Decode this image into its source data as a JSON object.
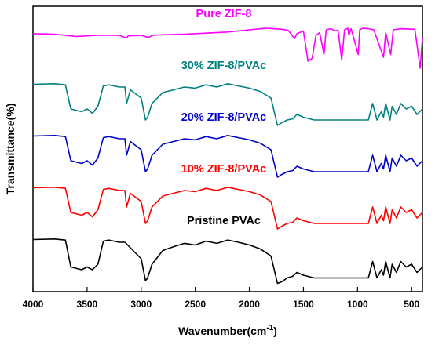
{
  "chart_data": {
    "type": "line",
    "title": "",
    "xlabel": "Wavenumber(cm",
    "xlabel_superscript": "-1",
    "xlabel_suffix": ")",
    "ylabel": "Transmittance(%)",
    "xlim": [
      4000,
      400
    ],
    "x_reversed": true,
    "x_ticks": [
      4000,
      3500,
      3000,
      2500,
      2000,
      1500,
      1000,
      500
    ],
    "y_ticks_shown": false,
    "grid": false,
    "series": [
      {
        "name": "Pure ZIF-8",
        "color": "#ff00ff",
        "offset": 4,
        "points": [
          [
            4000,
            0.83
          ],
          [
            3800,
            0.82
          ],
          [
            3600,
            0.78
          ],
          [
            3400,
            0.8
          ],
          [
            3200,
            0.8
          ],
          [
            3135,
            0.75
          ],
          [
            3120,
            0.79
          ],
          [
            3000,
            0.8
          ],
          [
            2930,
            0.76
          ],
          [
            2900,
            0.8
          ],
          [
            2800,
            0.81
          ],
          [
            2600,
            0.82
          ],
          [
            2400,
            0.84
          ],
          [
            2200,
            0.86
          ],
          [
            2000,
            0.9
          ],
          [
            1850,
            0.93
          ],
          [
            1700,
            0.91
          ],
          [
            1640,
            0.89
          ],
          [
            1584,
            0.74
          ],
          [
            1560,
            0.83
          ],
          [
            1500,
            0.88
          ],
          [
            1458,
            0.33
          ],
          [
            1420,
            0.38
          ],
          [
            1384,
            0.8
          ],
          [
            1350,
            0.85
          ],
          [
            1310,
            0.45
          ],
          [
            1290,
            0.9
          ],
          [
            1250,
            0.92
          ],
          [
            1200,
            0.88
          ],
          [
            1180,
            0.9
          ],
          [
            1146,
            0.35
          ],
          [
            1120,
            0.9
          ],
          [
            1090,
            0.93
          ],
          [
            1080,
            0.8
          ],
          [
            1060,
            0.92
          ],
          [
            994,
            0.45
          ],
          [
            980,
            0.9
          ],
          [
            950,
            0.93
          ],
          [
            900,
            0.92
          ],
          [
            850,
            0.9
          ],
          [
            760,
            0.4
          ],
          [
            740,
            0.85
          ],
          [
            693,
            0.45
          ],
          [
            670,
            0.9
          ],
          [
            600,
            0.92
          ],
          [
            470,
            0.91
          ],
          [
            421,
            0.2
          ],
          [
            400,
            0.75
          ]
        ]
      },
      {
        "name": "30% ZIF-8/PVAc",
        "color": "#008080",
        "offset": 3,
        "points": [
          [
            4000,
            0.85
          ],
          [
            3800,
            0.86
          ],
          [
            3700,
            0.84
          ],
          [
            3650,
            0.4
          ],
          [
            3550,
            0.35
          ],
          [
            3500,
            0.4
          ],
          [
            3450,
            0.32
          ],
          [
            3400,
            0.45
          ],
          [
            3350,
            0.82
          ],
          [
            3300,
            0.84
          ],
          [
            3200,
            0.8
          ],
          [
            3150,
            0.8
          ],
          [
            3135,
            0.5
          ],
          [
            3120,
            0.6
          ],
          [
            3100,
            0.75
          ],
          [
            3000,
            0.6
          ],
          [
            2960,
            0.2
          ],
          [
            2940,
            0.25
          ],
          [
            2900,
            0.5
          ],
          [
            2800,
            0.7
          ],
          [
            2700,
            0.75
          ],
          [
            2600,
            0.8
          ],
          [
            2500,
            0.78
          ],
          [
            2400,
            0.84
          ],
          [
            2300,
            0.8
          ],
          [
            2200,
            0.86
          ],
          [
            2100,
            0.82
          ],
          [
            2000,
            0.78
          ],
          [
            1900,
            0.72
          ],
          [
            1800,
            0.6
          ],
          [
            1740,
            0.1
          ],
          [
            1700,
            0.15
          ],
          [
            1650,
            0.2
          ],
          [
            1600,
            0.22
          ],
          [
            1560,
            0.3
          ],
          [
            1500,
            0.25
          ],
          [
            1400,
            0.2
          ],
          [
            1300,
            0.2
          ],
          [
            1200,
            0.2
          ],
          [
            1100,
            0.2
          ],
          [
            1000,
            0.2
          ],
          [
            900,
            0.2
          ],
          [
            860,
            0.5
          ],
          [
            820,
            0.2
          ],
          [
            780,
            0.35
          ],
          [
            760,
            0.25
          ],
          [
            740,
            0.5
          ],
          [
            700,
            0.2
          ],
          [
            680,
            0.45
          ],
          [
            640,
            0.3
          ],
          [
            600,
            0.5
          ],
          [
            550,
            0.4
          ],
          [
            500,
            0.45
          ],
          [
            450,
            0.3
          ],
          [
            400,
            0.4
          ]
        ]
      },
      {
        "name": "20% ZIF-8/PVAc",
        "color": "#0000cc",
        "offset": 2,
        "points": [
          [
            4000,
            0.85
          ],
          [
            3800,
            0.86
          ],
          [
            3700,
            0.84
          ],
          [
            3650,
            0.4
          ],
          [
            3550,
            0.35
          ],
          [
            3500,
            0.4
          ],
          [
            3450,
            0.32
          ],
          [
            3400,
            0.45
          ],
          [
            3350,
            0.82
          ],
          [
            3300,
            0.84
          ],
          [
            3200,
            0.8
          ],
          [
            3150,
            0.8
          ],
          [
            3135,
            0.5
          ],
          [
            3120,
            0.6
          ],
          [
            3100,
            0.75
          ],
          [
            3000,
            0.6
          ],
          [
            2960,
            0.2
          ],
          [
            2940,
            0.25
          ],
          [
            2900,
            0.5
          ],
          [
            2800,
            0.7
          ],
          [
            2700,
            0.75
          ],
          [
            2600,
            0.8
          ],
          [
            2500,
            0.78
          ],
          [
            2400,
            0.84
          ],
          [
            2300,
            0.8
          ],
          [
            2200,
            0.86
          ],
          [
            2100,
            0.82
          ],
          [
            2000,
            0.78
          ],
          [
            1900,
            0.72
          ],
          [
            1800,
            0.6
          ],
          [
            1740,
            0.1
          ],
          [
            1700,
            0.15
          ],
          [
            1650,
            0.2
          ],
          [
            1600,
            0.22
          ],
          [
            1560,
            0.3
          ],
          [
            1500,
            0.25
          ],
          [
            1400,
            0.2
          ],
          [
            1300,
            0.2
          ],
          [
            1200,
            0.2
          ],
          [
            1100,
            0.2
          ],
          [
            1000,
            0.2
          ],
          [
            900,
            0.2
          ],
          [
            860,
            0.5
          ],
          [
            820,
            0.2
          ],
          [
            780,
            0.35
          ],
          [
            760,
            0.25
          ],
          [
            740,
            0.5
          ],
          [
            700,
            0.2
          ],
          [
            680,
            0.45
          ],
          [
            640,
            0.3
          ],
          [
            600,
            0.5
          ],
          [
            550,
            0.4
          ],
          [
            500,
            0.45
          ],
          [
            450,
            0.3
          ],
          [
            400,
            0.4
          ]
        ]
      },
      {
        "name": "10% ZIF-8/PVAc",
        "color": "#ff0000",
        "offset": 1,
        "points": [
          [
            4000,
            0.85
          ],
          [
            3800,
            0.86
          ],
          [
            3700,
            0.84
          ],
          [
            3650,
            0.4
          ],
          [
            3550,
            0.35
          ],
          [
            3500,
            0.4
          ],
          [
            3450,
            0.32
          ],
          [
            3400,
            0.45
          ],
          [
            3350,
            0.82
          ],
          [
            3300,
            0.84
          ],
          [
            3200,
            0.8
          ],
          [
            3150,
            0.8
          ],
          [
            3135,
            0.5
          ],
          [
            3120,
            0.6
          ],
          [
            3100,
            0.75
          ],
          [
            3000,
            0.6
          ],
          [
            2960,
            0.2
          ],
          [
            2940,
            0.25
          ],
          [
            2900,
            0.5
          ],
          [
            2800,
            0.7
          ],
          [
            2700,
            0.75
          ],
          [
            2600,
            0.8
          ],
          [
            2500,
            0.78
          ],
          [
            2400,
            0.84
          ],
          [
            2300,
            0.8
          ],
          [
            2200,
            0.86
          ],
          [
            2100,
            0.82
          ],
          [
            2000,
            0.78
          ],
          [
            1900,
            0.72
          ],
          [
            1800,
            0.6
          ],
          [
            1740,
            0.1
          ],
          [
            1700,
            0.15
          ],
          [
            1650,
            0.2
          ],
          [
            1600,
            0.22
          ],
          [
            1560,
            0.3
          ],
          [
            1500,
            0.25
          ],
          [
            1400,
            0.2
          ],
          [
            1300,
            0.2
          ],
          [
            1200,
            0.2
          ],
          [
            1100,
            0.2
          ],
          [
            1000,
            0.2
          ],
          [
            900,
            0.2
          ],
          [
            860,
            0.5
          ],
          [
            820,
            0.2
          ],
          [
            780,
            0.35
          ],
          [
            760,
            0.25
          ],
          [
            740,
            0.5
          ],
          [
            700,
            0.2
          ],
          [
            680,
            0.45
          ],
          [
            640,
            0.3
          ],
          [
            600,
            0.5
          ],
          [
            550,
            0.4
          ],
          [
            500,
            0.45
          ],
          [
            450,
            0.3
          ],
          [
            400,
            0.4
          ]
        ]
      },
      {
        "name": "Pristine PVAc",
        "color": "#000000",
        "offset": 0,
        "points": [
          [
            4000,
            0.85
          ],
          [
            3800,
            0.86
          ],
          [
            3700,
            0.84
          ],
          [
            3650,
            0.35
          ],
          [
            3550,
            0.3
          ],
          [
            3500,
            0.35
          ],
          [
            3450,
            0.3
          ],
          [
            3400,
            0.4
          ],
          [
            3350,
            0.82
          ],
          [
            3300,
            0.84
          ],
          [
            3200,
            0.8
          ],
          [
            3150,
            0.8
          ],
          [
            3100,
            0.7
          ],
          [
            3000,
            0.5
          ],
          [
            2960,
            0.1
          ],
          [
            2940,
            0.15
          ],
          [
            2900,
            0.4
          ],
          [
            2800,
            0.65
          ],
          [
            2700,
            0.72
          ],
          [
            2600,
            0.78
          ],
          [
            2500,
            0.75
          ],
          [
            2400,
            0.82
          ],
          [
            2300,
            0.78
          ],
          [
            2200,
            0.84
          ],
          [
            2100,
            0.8
          ],
          [
            2000,
            0.75
          ],
          [
            1900,
            0.68
          ],
          [
            1800,
            0.55
          ],
          [
            1740,
            0.05
          ],
          [
            1700,
            0.08
          ],
          [
            1650,
            0.15
          ],
          [
            1600,
            0.18
          ],
          [
            1560,
            0.25
          ],
          [
            1500,
            0.2
          ],
          [
            1400,
            0.15
          ],
          [
            1300,
            0.15
          ],
          [
            1200,
            0.15
          ],
          [
            1100,
            0.15
          ],
          [
            1000,
            0.15
          ],
          [
            900,
            0.15
          ],
          [
            860,
            0.45
          ],
          [
            820,
            0.15
          ],
          [
            780,
            0.3
          ],
          [
            760,
            0.2
          ],
          [
            740,
            0.45
          ],
          [
            700,
            0.15
          ],
          [
            680,
            0.4
          ],
          [
            640,
            0.25
          ],
          [
            600,
            0.45
          ],
          [
            550,
            0.35
          ],
          [
            500,
            0.4
          ],
          [
            450,
            0.25
          ],
          [
            400,
            0.35
          ]
        ]
      }
    ]
  }
}
